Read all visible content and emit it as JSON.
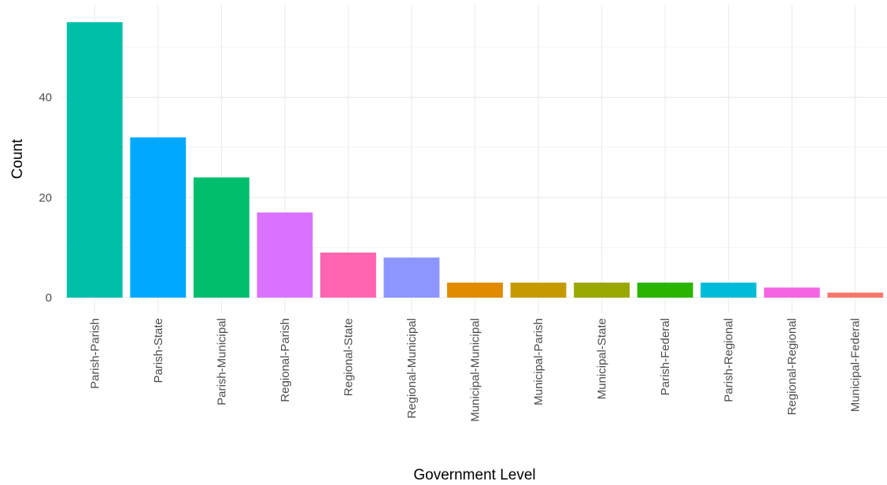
{
  "chart_data": {
    "type": "bar",
    "xlabel": "Government Level",
    "ylabel": "Count",
    "ylim": [
      0,
      56
    ],
    "yticks": [
      0,
      20,
      40
    ],
    "categories": [
      "Parish-Parish",
      "Parish-State",
      "Parish-Municipal",
      "Regional-Parish",
      "Regional-State",
      "Regional-Municipal",
      "Municipal-Municipal",
      "Municipal-Parish",
      "Municipal-State",
      "Parish-Federal",
      "Parish-Regional",
      "Regional-Regional",
      "Municipal-Federal"
    ],
    "values": [
      55,
      32,
      24,
      17,
      9,
      8,
      3,
      3,
      3,
      3,
      3,
      2,
      1
    ],
    "colors": [
      "#00BFA9",
      "#00A9FF",
      "#00BE6C",
      "#D973FF",
      "#FF64B0",
      "#8D96FF",
      "#E08B00",
      "#C49A00",
      "#99A800",
      "#2BB400",
      "#00BCD8",
      "#F564E3",
      "#F8766D"
    ],
    "grid": true,
    "legend": "none"
  }
}
